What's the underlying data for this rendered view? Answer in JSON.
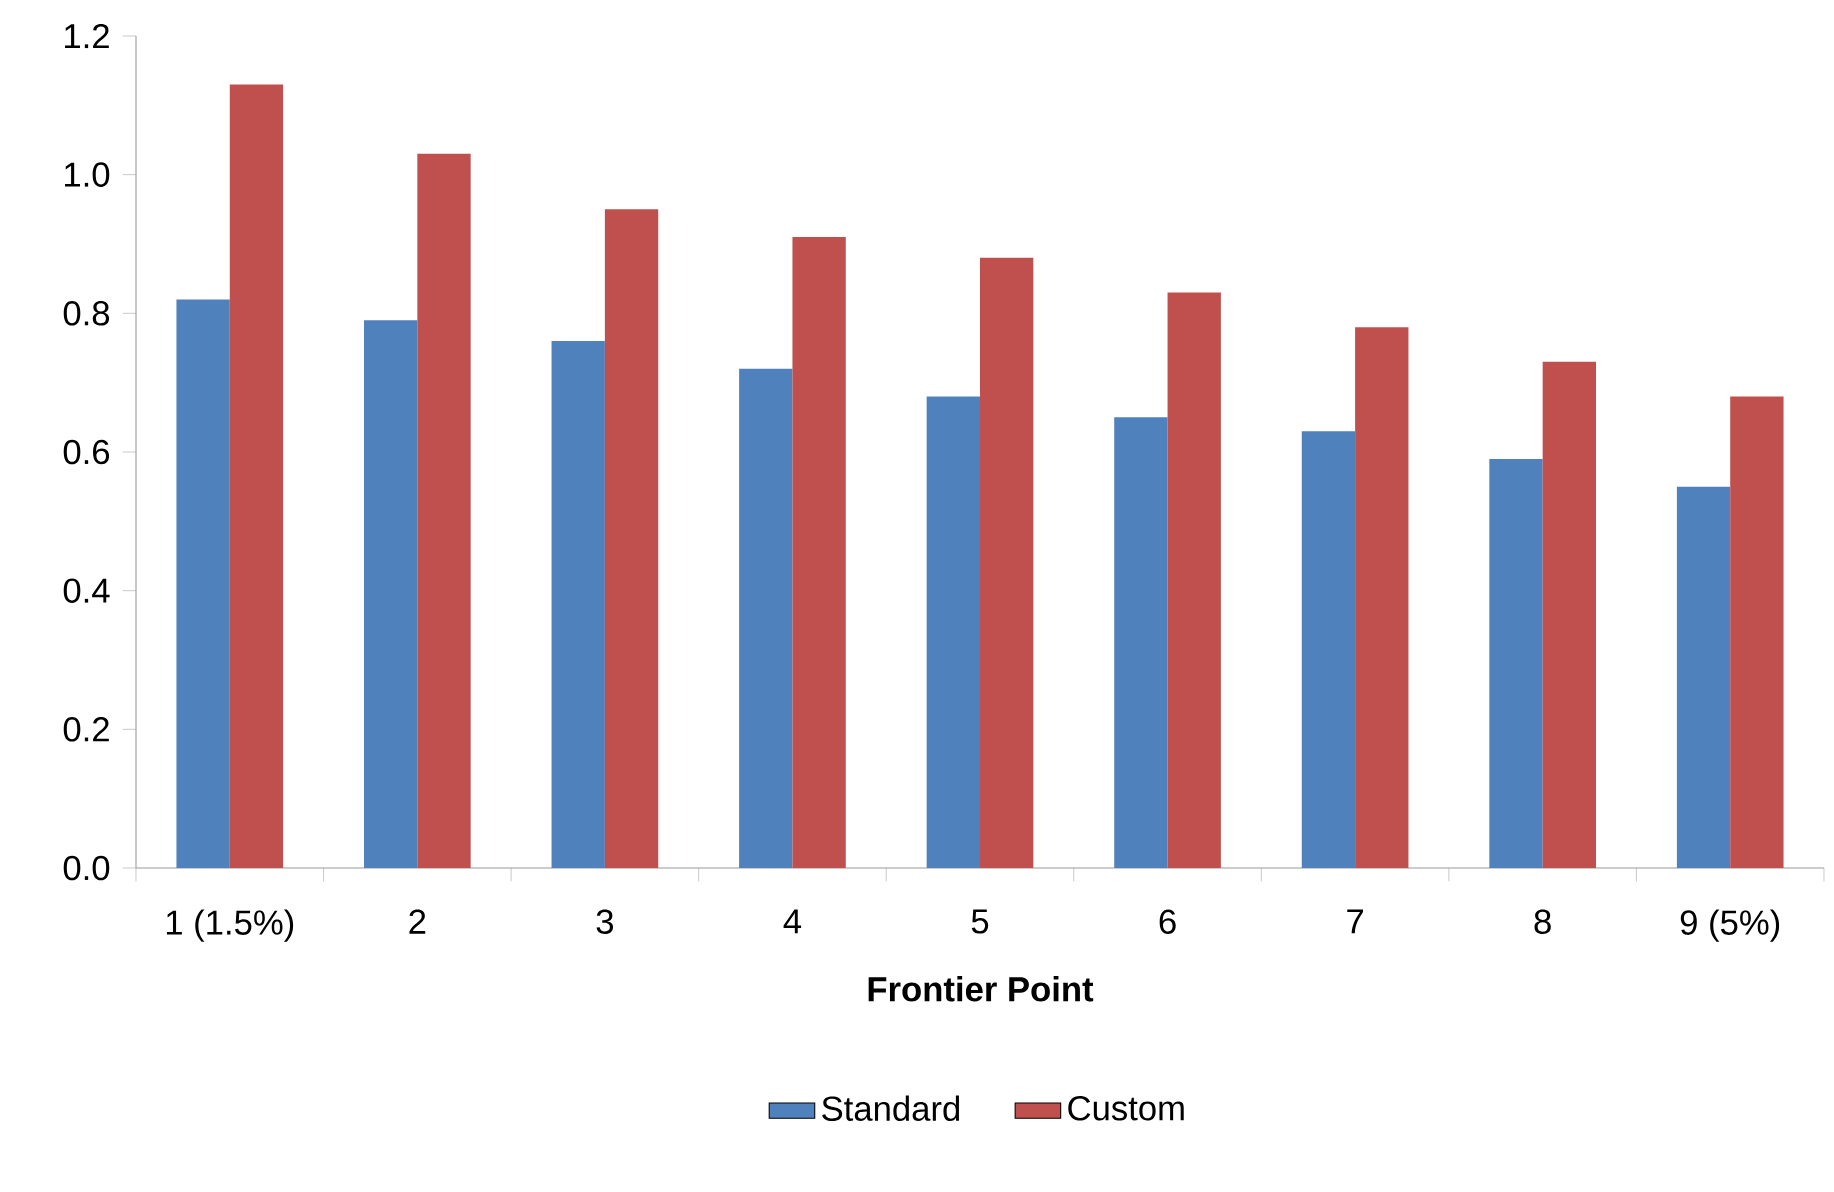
{
  "chart_data": {
    "type": "bar",
    "xlabel": "Frontier Point",
    "categories": [
      "1 (1.5%)",
      "2",
      "3",
      "4",
      "5",
      "6",
      "7",
      "8",
      "9 (5%)"
    ],
    "series": [
      {
        "name": "Standard",
        "color": "#4f81bd",
        "values": [
          0.82,
          0.79,
          0.76,
          0.72,
          0.68,
          0.65,
          0.63,
          0.59,
          0.55
        ]
      },
      {
        "name": "Custom",
        "color": "#c0504d",
        "values": [
          1.13,
          1.03,
          0.95,
          0.91,
          0.88,
          0.83,
          0.78,
          0.73,
          0.68
        ]
      }
    ],
    "ylim": [
      0,
      1.2
    ],
    "yticks": [
      {
        "value": 0,
        "label": "0.0"
      },
      {
        "value": 0.2,
        "label": "0.2"
      },
      {
        "value": 0.4,
        "label": "0.4"
      },
      {
        "value": 0.6,
        "label": "0.6"
      },
      {
        "value": 0.8,
        "label": "0.8"
      },
      {
        "value": 1.0,
        "label": "1.0"
      },
      {
        "value": 1.2,
        "label": "1.2"
      }
    ],
    "grid": false,
    "legend": "bottom"
  }
}
